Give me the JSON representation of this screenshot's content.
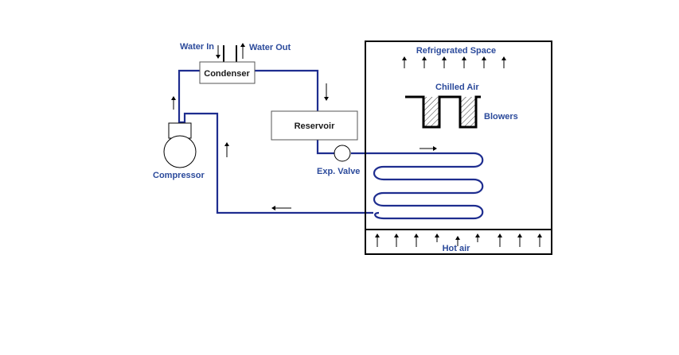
{
  "labels": {
    "water_in": "Water In",
    "water_out": "Water Out",
    "condenser": "Condenser",
    "reservoir": "Reservoir",
    "compressor": "Compressor",
    "exp_valve": "Exp. Valve",
    "refrigerated_space": "Refrigerated Space",
    "chilled_air": "Chilled Air",
    "blowers": "Blowers",
    "hot_air": "Hot air"
  },
  "colors": {
    "pipe": "#1e2d8f",
    "label": "#2b4a9b"
  }
}
